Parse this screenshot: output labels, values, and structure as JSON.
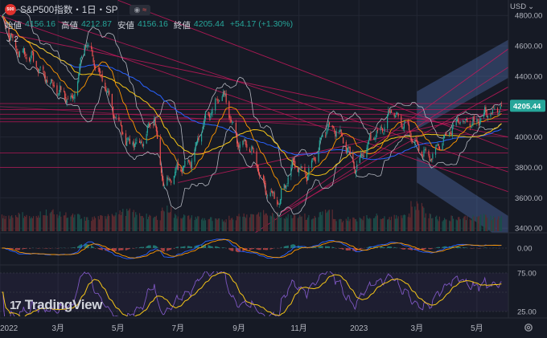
{
  "header": {
    "symbol_badge": "500",
    "title": "S&P500指数・1日・SP",
    "eye_icon": "eye-icon",
    "wave_icon": "wave-icon",
    "collapse_label": "2"
  },
  "ohlc": {
    "open_label": "始値",
    "open": "4156.16",
    "high_label": "高値",
    "high": "4212.87",
    "low_label": "安値",
    "low": "4156.16",
    "close_label": "終値",
    "close": "4205.44",
    "change": "+54.17 (+1.30%)"
  },
  "currency": "USD",
  "brand": "TradingView",
  "colors": {
    "background": "#161a25",
    "up": "#26a69a",
    "down": "#ef5350",
    "bollinger": "#b2b5be",
    "ma_yellow": "#f5c518",
    "ma_orange": "#ff9800",
    "ma_blue": "#2962ff",
    "trendline": "#c2185b",
    "channel_fill": "#5b7ec2",
    "macd_signal": "#ff9800",
    "macd_line": "#2962ff",
    "rsi": "#7e57c2",
    "rsi_ma": "#f5c518",
    "price_badge": "#26a69a"
  },
  "chart_data": {
    "type": "line",
    "title": "S&P500指数・1日・SP",
    "price_axis": {
      "ticks": [
        4800,
        4600,
        4400,
        4200,
        4000,
        3800,
        3600,
        3400
      ],
      "tick_labels": [
        "4800.00",
        "4600.00",
        "4400.00",
        "4200.00",
        "4000.00",
        "3800.00",
        "3600.00",
        "3400.00"
      ],
      "range": [
        3380,
        4870
      ],
      "last_price": 4205.44,
      "last_price_label": "4205.44"
    },
    "x_axis": {
      "labels": [
        "2022",
        "3月",
        "5月",
        "7月",
        "9月",
        "11月",
        "2023",
        "3月",
        "5月"
      ],
      "dates": [
        "2022-01",
        "2022-03",
        "2022-05",
        "2022-07",
        "2022-09",
        "2022-11",
        "2023-01",
        "2023-03",
        "2023-05"
      ]
    },
    "series": [
      {
        "kind": "close",
        "dates": [
          "2022-01-03",
          "2022-01-18",
          "2022-02-01",
          "2022-02-15",
          "2022-03-01",
          "2022-03-15",
          "2022-03-29",
          "2022-04-12",
          "2022-04-26",
          "2022-05-10",
          "2022-05-24",
          "2022-06-07",
          "2022-06-16",
          "2022-06-30",
          "2022-07-15",
          "2022-07-29",
          "2022-08-16",
          "2022-08-30",
          "2022-09-13",
          "2022-09-27",
          "2022-10-12",
          "2022-10-26",
          "2022-11-09",
          "2022-11-30",
          "2022-12-13",
          "2022-12-28",
          "2023-01-12",
          "2023-01-26",
          "2023-02-02",
          "2023-02-16",
          "2023-03-01",
          "2023-03-13",
          "2023-03-27",
          "2023-04-11",
          "2023-04-25",
          "2023-05-09",
          "2023-05-19",
          "2023-05-26"
        ],
        "values": [
          4790,
          4570,
          4530,
          4400,
          4310,
          4230,
          4630,
          4420,
          4180,
          3970,
          3950,
          4130,
          3680,
          3790,
          3850,
          4130,
          4290,
          3960,
          3930,
          3660,
          3580,
          3830,
          3750,
          4080,
          4030,
          3790,
          3980,
          4060,
          4180,
          4080,
          3950,
          3860,
          3980,
          4110,
          4080,
          4150,
          4180,
          4205
        ]
      },
      {
        "kind": "volume",
        "values": [
          0.55,
          0.6,
          0.5,
          0.7,
          0.6,
          0.55,
          0.45,
          0.5,
          0.65,
          0.7,
          0.6,
          0.5,
          0.8,
          0.55,
          0.5,
          0.45,
          0.4,
          0.5,
          0.6,
          0.65,
          0.6,
          0.55,
          0.6,
          0.5,
          0.7,
          0.4,
          0.45,
          0.5,
          0.55,
          0.5,
          0.6,
          0.95,
          0.55,
          0.45,
          0.5,
          0.5,
          0.55,
          0.5
        ]
      }
    ],
    "indicators": [
      "Bollinger Bands",
      "SMA",
      "MACD",
      "RSI"
    ],
    "sub_panels": [
      {
        "name": "MACD",
        "tick_labels": [
          "0.00"
        ]
      },
      {
        "name": "RSI",
        "tick_labels": [
          "75.00",
          "25.00"
        ]
      }
    ],
    "grid": true,
    "legend": "none"
  }
}
